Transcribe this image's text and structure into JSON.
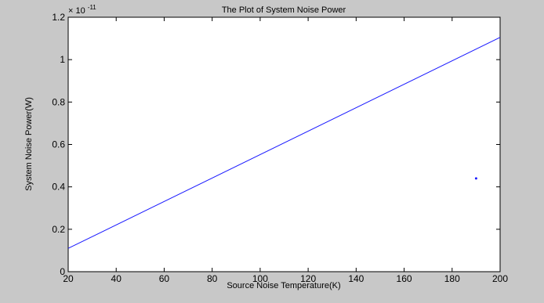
{
  "figure": {
    "background": "#c8c8c8",
    "axes_background": "#ffffff",
    "line_color": "#1a1aff",
    "point_color": "#1a1aff"
  },
  "chart_data": {
    "type": "line",
    "title": "The Plot of System Noise Power",
    "xlabel": "Source Noise Temperature(K)",
    "ylabel": "System Noise Power(W)",
    "y_exponent_label": "× 10",
    "y_exponent": "-11",
    "xlim": [
      20,
      200
    ],
    "ylim": [
      0,
      1.2
    ],
    "x_ticks": [
      {
        "value": 20,
        "label": "20"
      },
      {
        "value": 40,
        "label": "40"
      },
      {
        "value": 60,
        "label": "60"
      },
      {
        "value": 80,
        "label": "80"
      },
      {
        "value": 100,
        "label": "100"
      },
      {
        "value": 120,
        "label": "120"
      },
      {
        "value": 140,
        "label": "140"
      },
      {
        "value": 160,
        "label": "160"
      },
      {
        "value": 180,
        "label": "180"
      },
      {
        "value": 200,
        "label": "200"
      }
    ],
    "y_ticks": [
      {
        "value": 0,
        "label": "0"
      },
      {
        "value": 0.2,
        "label": "0.2"
      },
      {
        "value": 0.4,
        "label": "0.4"
      },
      {
        "value": 0.6,
        "label": "0.6"
      },
      {
        "value": 0.8,
        "label": "0.8"
      },
      {
        "value": 1,
        "label": "1"
      },
      {
        "value": 1.2,
        "label": "1.2"
      }
    ],
    "grid": false,
    "series": [
      {
        "type": "line",
        "x": [
          20,
          200
        ],
        "y": [
          0.11,
          1.105
        ]
      },
      {
        "type": "scatter",
        "x": [
          190
        ],
        "y": [
          0.44
        ]
      }
    ]
  }
}
